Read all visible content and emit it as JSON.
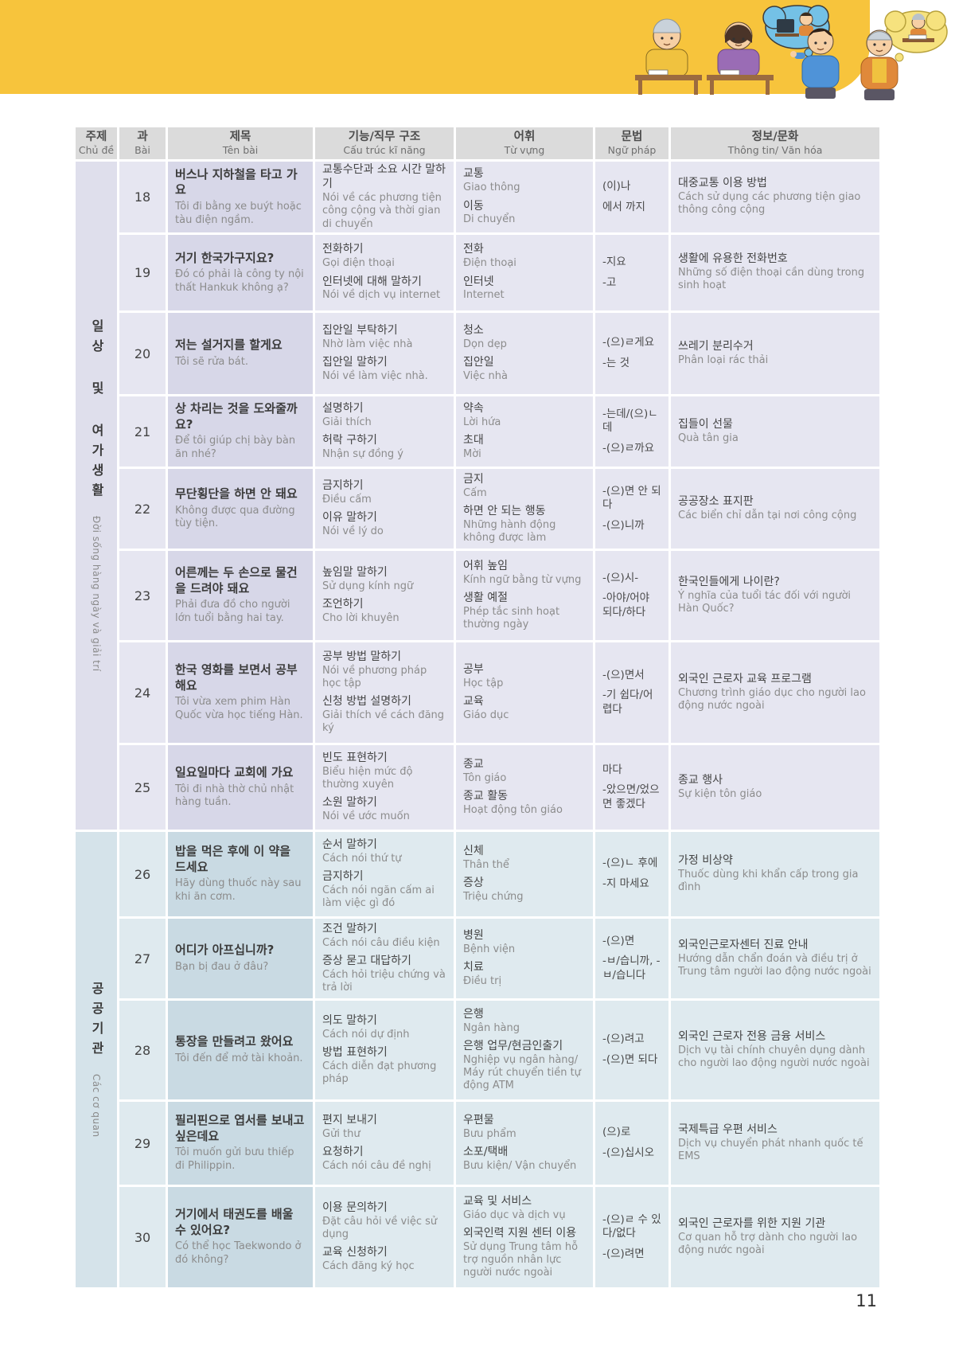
{
  "page": {
    "number": "11"
  },
  "header": {
    "columns": [
      {
        "ko": "주제",
        "vi": "Chủ đề"
      },
      {
        "ko": "과",
        "vi": "Bài"
      },
      {
        "ko": "제목",
        "vi": "Tên bài"
      },
      {
        "ko": "기능/직무 구조",
        "vi": "Cấu trúc kĩ năng"
      },
      {
        "ko": "어휘",
        "vi": "Từ vựng"
      },
      {
        "ko": "문법",
        "vi": "Ngữ pháp"
      },
      {
        "ko": "정보/문화",
        "vi": "Thông tin/ Văn hóa"
      }
    ]
  },
  "themes": [
    {
      "ko": "일상 및 여가생활",
      "vi": "Đời sống hàng ngày và giải trí"
    },
    {
      "ko": "공공기관",
      "vi": "Các cơ quan"
    }
  ],
  "rows": [
    {
      "lesson": "18",
      "group": 0,
      "theme_start": true,
      "title_ko": "버스나 지하철을 타고 가요",
      "title_vi": "Tôi đi bằng xe buýt hoặc tàu điện ngầm.",
      "skills": [
        {
          "ko": "교통수단과 소요 시간 말하기",
          "vi": "Nói về các phương tiện công cộng và thời gian di chuyển"
        }
      ],
      "vocab": [
        {
          "ko": "교통",
          "vi": "Giao thông"
        },
        {
          "ko": "이동",
          "vi": "Di chuyển"
        }
      ],
      "grammar": [
        "(이)나",
        "에서 까지"
      ],
      "info": [
        {
          "ko": "대중교통 이용 방법",
          "vi": "Cách sử dụng các phương tiện giao thông công cộng"
        }
      ]
    },
    {
      "lesson": "19",
      "group": 0,
      "title_ko": "거기 한국가구지요?",
      "title_vi": "Đó có phải là công ty nội thất Hankuk không ạ?",
      "skills": [
        {
          "ko": "전화하기",
          "vi": "Gọi điện thoại"
        },
        {
          "ko": "인터넷에 대해 말하기",
          "vi": "Nói về dịch vụ internet"
        }
      ],
      "vocab": [
        {
          "ko": "전화",
          "vi": "Điện thoại"
        },
        {
          "ko": "인터넷",
          "vi": "Internet"
        }
      ],
      "grammar": [
        "-지요",
        "-고"
      ],
      "info": [
        {
          "ko": "생활에 유용한 전화번호",
          "vi": "Những số điện thoại cần dùng trong sinh hoạt"
        }
      ]
    },
    {
      "lesson": "20",
      "group": 0,
      "title_ko": "저는 설거지를 할게요",
      "title_vi": "Tôi sẽ rửa bát.",
      "skills": [
        {
          "ko": "집안일 부탁하기",
          "vi": "Nhờ làm việc nhà"
        },
        {
          "ko": "집안일 말하기",
          "vi": "Nói về làm việc nhà."
        }
      ],
      "vocab": [
        {
          "ko": "청소",
          "vi": "Dọn dẹp"
        },
        {
          "ko": "집안일",
          "vi": "Việc nhà"
        }
      ],
      "grammar": [
        "-(으)ㄹ게요",
        "-는 것"
      ],
      "info": [
        {
          "ko": "쓰레기 분리수거",
          "vi": "Phân loại rác thải"
        }
      ]
    },
    {
      "lesson": "21",
      "group": 0,
      "title_ko": "상 차리는 것을 도와줄까요?",
      "title_vi": "Để tôi giúp chị bày bàn ăn nhé?",
      "skills": [
        {
          "ko": "설명하기",
          "vi": "Giải thích"
        },
        {
          "ko": "허락 구하기",
          "vi": "Nhận sự đồng ý"
        }
      ],
      "vocab": [
        {
          "ko": "약속",
          "vi": "Lời hứa"
        },
        {
          "ko": "초대",
          "vi": "Mời"
        }
      ],
      "grammar": [
        "-는데/(으)ㄴ데",
        "-(으)ㄹ까요"
      ],
      "info": [
        {
          "ko": "집들이 선물",
          "vi": "Quà tân gia"
        }
      ]
    },
    {
      "lesson": "22",
      "group": 0,
      "title_ko": "무단횡단을 하면 안 돼요",
      "title_vi": "Không được qua đường tùy tiện.",
      "skills": [
        {
          "ko": "금지하기",
          "vi": "Điều cấm"
        },
        {
          "ko": "이유 말하기",
          "vi": "Nói về lý do"
        }
      ],
      "vocab": [
        {
          "ko": "금지",
          "vi": "Cấm"
        },
        {
          "ko": "하면 안 되는 행동",
          "vi": "Những hành động không được làm"
        }
      ],
      "grammar": [
        "-(으)면 안 되다",
        "-(으)니까"
      ],
      "info": [
        {
          "ko": "공공장소 표지판",
          "vi": "Các biển chỉ dẫn tại nơi công cộng"
        }
      ]
    },
    {
      "lesson": "23",
      "group": 0,
      "title_ko": "어른께는 두 손으로 물건을 드려야 돼요",
      "title_vi": "Phải đưa đồ cho người lớn tuổi bằng hai tay.",
      "skills": [
        {
          "ko": "높임말 말하기",
          "vi": "Sử dụng kính ngữ"
        },
        {
          "ko": "조언하기",
          "vi": "Cho lời khuyên"
        }
      ],
      "vocab": [
        {
          "ko": "어휘 높임",
          "vi": "Kính ngữ bằng từ vựng"
        },
        {
          "ko": "생활 예절",
          "vi": "Phép tắc sinh hoạt thường ngày"
        }
      ],
      "grammar": [
        "-(으)시-",
        "-아야/어야 되다/하다"
      ],
      "info": [
        {
          "ko": "한국인들에게 나이란?",
          "vi": "Ý nghĩa của tuổi tác đối với người Hàn Quốc?"
        }
      ]
    },
    {
      "lesson": "24",
      "group": 0,
      "title_ko": "한국 영화를 보면서 공부해요",
      "title_vi": "Tôi vừa xem phim Hàn Quốc vừa học tiếng Hàn.",
      "skills": [
        {
          "ko": "공부 방법 말하기",
          "vi": "Nói về phương pháp học tập"
        },
        {
          "ko": "신청 방법 설명하기",
          "vi": "Giải thích về cách đăng ký"
        }
      ],
      "vocab": [
        {
          "ko": "공부",
          "vi": "Học tập"
        },
        {
          "ko": "교육",
          "vi": "Giáo dục"
        }
      ],
      "grammar": [
        "-(으)면서",
        "-기 쉽다/어렵다"
      ],
      "info": [
        {
          "ko": "외국인 근로자 교육 프로그램",
          "vi": "Chương trình giáo dục cho người lao động nước ngoài"
        }
      ]
    },
    {
      "lesson": "25",
      "group": 0,
      "title_ko": "일요일마다 교회에 가요",
      "title_vi": "Tôi đi nhà thờ chủ nhật hàng tuần.",
      "skills": [
        {
          "ko": "빈도 표현하기",
          "vi": "Biểu hiện mức độ thường xuyên"
        },
        {
          "ko": "소원 말하기",
          "vi": "Nói về ước muốn"
        }
      ],
      "vocab": [
        {
          "ko": "종교",
          "vi": "Tôn giáo"
        },
        {
          "ko": "종교 활동",
          "vi": "Hoạt động tôn giáo"
        }
      ],
      "grammar": [
        "마다",
        "-았으면/었으면 좋겠다"
      ],
      "info": [
        {
          "ko": "종교 행사",
          "vi": "Sự kiện tôn giáo"
        }
      ]
    },
    {
      "lesson": "26",
      "group": 1,
      "theme_start": true,
      "title_ko": "밥을 먹은 후에 이 약을 드세요",
      "title_vi": "Hãy dùng thuốc này sau khi ăn cơm.",
      "skills": [
        {
          "ko": "순서 말하기",
          "vi": "Cách nói thứ tự"
        },
        {
          "ko": "금지하기",
          "vi": "Cách nói ngăn cấm ai làm việc gì đó"
        }
      ],
      "vocab": [
        {
          "ko": "신체",
          "vi": "Thân thể"
        },
        {
          "ko": "증상",
          "vi": "Triệu chứng"
        }
      ],
      "grammar": [
        "-(으)ㄴ 후에",
        "-지 마세요"
      ],
      "info": [
        {
          "ko": "가정 비상약",
          "vi": "Thuốc dùng khi khẩn cấp trong gia đình"
        }
      ]
    },
    {
      "lesson": "27",
      "group": 1,
      "title_ko": "어디가 아프십니까?",
      "title_vi": "Bạn bị đau ở đâu?",
      "skills": [
        {
          "ko": "조건 말하기",
          "vi": "Cách nói câu điều kiện"
        },
        {
          "ko": "증상 묻고 대답하기",
          "vi": "Cách hỏi triệu chứng và trả lời"
        }
      ],
      "vocab": [
        {
          "ko": "병원",
          "vi": "Bệnh viện"
        },
        {
          "ko": "치료",
          "vi": "Điều trị"
        }
      ],
      "grammar": [
        "-(으)면",
        "-ㅂ/습니까, -ㅂ/습니다"
      ],
      "info": [
        {
          "ko": "외국인근로자센터 진료 안내",
          "vi": "Hướng dẫn chẩn đoán và điều trị ở Trung tâm người lao động nước ngoài"
        }
      ]
    },
    {
      "lesson": "28",
      "group": 1,
      "title_ko": "통장을 만들려고 왔어요",
      "title_vi": "Tôi đến để mở tài khoản.",
      "skills": [
        {
          "ko": "의도 말하기",
          "vi": "Cách nói dự định"
        },
        {
          "ko": "방법 표현하기",
          "vi": "Cách diễn đạt phương pháp"
        }
      ],
      "vocab": [
        {
          "ko": "은행",
          "vi": "Ngân hàng"
        },
        {
          "ko": "은행 업무/현금인출기",
          "vi": "Nghiệp vụ ngân hàng/ Máy rút chuyển tiền tự động ATM"
        }
      ],
      "grammar": [
        "-(으)려고",
        "-(으)면 되다"
      ],
      "info": [
        {
          "ko": "외국인 근로자 전용 금융 서비스",
          "vi": "Dịch vụ tài chính chuyên dụng dành cho người lao động người nước ngoài"
        }
      ]
    },
    {
      "lesson": "29",
      "group": 1,
      "title_ko": "필리핀으로 엽서를 보내고 싶은데요",
      "title_vi": "Tôi muốn gửi bưu thiếp đi Philippin.",
      "skills": [
        {
          "ko": "편지 보내기",
          "vi": "Gửi thư"
        },
        {
          "ko": "요청하기",
          "vi": "Cách nói câu đề nghị"
        }
      ],
      "vocab": [
        {
          "ko": "우편물",
          "vi": "Bưu phẩm"
        },
        {
          "ko": "소포/택배",
          "vi": "Bưu kiện/ Vận chuyển"
        }
      ],
      "grammar": [
        "(으)로",
        "-(으)십시오"
      ],
      "info": [
        {
          "ko": "국제특급 우편 서비스",
          "vi": "Dịch vụ chuyển phát nhanh quốc tế EMS"
        }
      ]
    },
    {
      "lesson": "30",
      "group": 1,
      "title_ko": "거기에서 태권도를 배울 수 있어요?",
      "title_vi": "Có thể học Taekwondo ở đó không?",
      "skills": [
        {
          "ko": "이용 문의하기",
          "vi": "Đặt câu hỏi về việc sử dụng"
        },
        {
          "ko": "교육 신청하기",
          "vi": "Cách đăng ký học"
        }
      ],
      "vocab": [
        {
          "ko": "교육 및 서비스",
          "vi": "Giáo dục và dịch vụ"
        },
        {
          "ko": "외국인력 지원 센터 이용",
          "vi": "Sử dụng Trung tâm hỗ trợ nguồn nhân lực người nước ngoài"
        }
      ],
      "grammar": [
        "-(으)ㄹ 수 있다/없다",
        "-(으)려면"
      ],
      "info": [
        {
          "ko": "외국인 근로자를 위한 지원 기관",
          "vi": "Cơ quan hỗ trợ dành cho người lao động nước ngoài"
        }
      ]
    }
  ]
}
